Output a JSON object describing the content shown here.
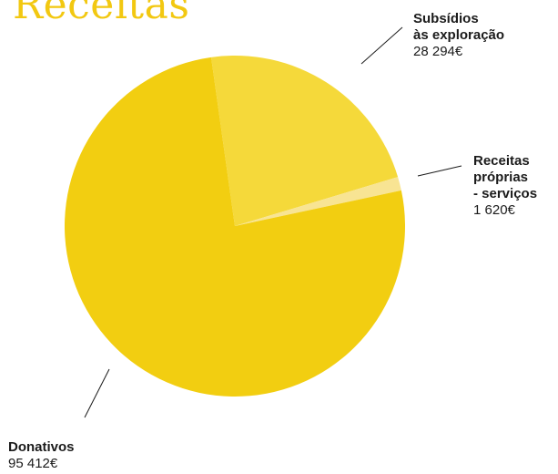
{
  "title": "Receitas",
  "colors": {
    "donativos": "#F2CE11",
    "subsidios": "#F5D93A",
    "receitas_proprias": "#F8E493",
    "leader": "#1b1b1b"
  },
  "chart_data": {
    "type": "pie",
    "title": "Receitas",
    "slices": [
      {
        "label": "Donativos",
        "value": 95412,
        "display": "95 412€",
        "color": "#F2CE11"
      },
      {
        "label": "Subsídios\nàs exploração",
        "value": 28294,
        "display": "28 294€",
        "color": "#F5D93A"
      },
      {
        "label": "Receitas\npróprias\n- serviços",
        "value": 1620,
        "display": "1 620€",
        "color": "#F8E493"
      }
    ]
  },
  "labels": {
    "subsidios_line1": "Subsídios",
    "subsidios_line2": "às exploração",
    "subsidios_value": "28 294€",
    "receitas_line1": "Receitas",
    "receitas_line2": "próprias",
    "receitas_line3": "- serviços",
    "receitas_value": "1 620€",
    "donativos_line1": "Donativos",
    "donativos_value": "95 412€"
  }
}
